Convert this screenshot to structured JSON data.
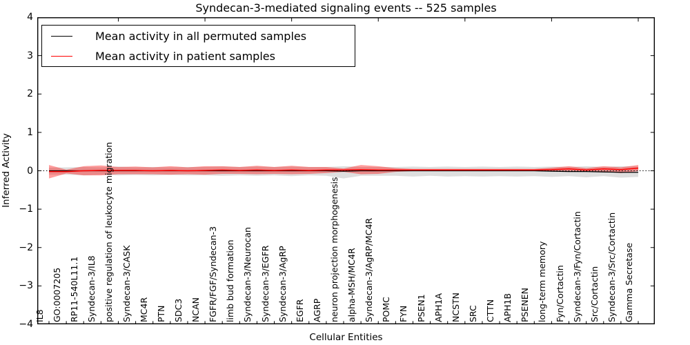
{
  "title": "Syndecan-3-mediated signaling events -- 525 samples",
  "legend": {
    "items": [
      {
        "label": "Mean activity in all permuted samples",
        "color": "#000000"
      },
      {
        "label": "Mean activity in patient samples",
        "color": "#ff0000"
      }
    ]
  },
  "axes": {
    "ylabel": "Inferred Activity",
    "xlabel": "Cellular Entities",
    "ytick_labels": [
      "4",
      "3",
      "2",
      "1",
      "0",
      "−1",
      "−2",
      "−3",
      "−4"
    ],
    "ytick_values": [
      4,
      3,
      2,
      1,
      0,
      -1,
      -2,
      -3,
      -4
    ]
  },
  "colors": {
    "permuted_line": "#000000",
    "patient_line": "#ff0000",
    "permuted_band": "#000000",
    "patient_band": "#ff0000",
    "spine": "#000000"
  },
  "chart_data": {
    "type": "line",
    "title": "Syndecan-3-mediated signaling events -- 525 samples",
    "xlabel": "Cellular Entities",
    "ylabel": "Inferred Activity",
    "ylim": [
      -4,
      4
    ],
    "grid": false,
    "legend_position": "upper left",
    "categories": [
      "IL8",
      "GO:0007205",
      "RP11-540L11.1",
      "Syndecan-3/IL8",
      "positive regulation of leukocyte migration",
      "Syndecan-3/CASK",
      "MC4R",
      "PTN",
      "SDC3",
      "NCAN",
      "FGFR/FGF/Syndecan-3",
      "limb bud formation",
      "Syndecan-3/Neurocan",
      "Syndecan-3/EGFR",
      "Syndecan-3/AgRP",
      "EGFR",
      "AGRP",
      "neuron projection morphogenesis",
      "alpha-MSH/MC4R",
      "Syndecan-3/AgRP/MC4R",
      "POMC",
      "FYN",
      "PSEN1",
      "APH1A",
      "NCSTN",
      "SRC",
      "CTTN",
      "APH1B",
      "PSENEN",
      "long-term memory",
      "Fyn/Cortactin",
      "Syndecan-3/Fyn/Cortactin",
      "Src/Cortactin",
      "Syndecan-3/Src/Cortactin",
      "Gamma Secretase"
    ],
    "series": [
      {
        "name": "Mean activity in all permuted samples",
        "color": "#000000",
        "values": [
          0,
          0,
          0,
          0,
          0,
          0,
          0,
          0,
          0,
          0,
          0,
          0,
          0,
          0,
          0,
          0,
          0,
          -0.01,
          0,
          0,
          0,
          0,
          0,
          0,
          0,
          0,
          0,
          0,
          0,
          -0.01,
          -0.02,
          -0.02,
          -0.03,
          -0.04,
          -0.04
        ]
      },
      {
        "name": "Mean activity in patient samples",
        "color": "#ff0000",
        "values": [
          -0.02,
          -0.02,
          0,
          0.01,
          0.01,
          0.01,
          0,
          0.01,
          0,
          0.01,
          0.02,
          0.01,
          0.02,
          0.01,
          0.02,
          0.01,
          0.02,
          0.02,
          0.03,
          0.02,
          0.02,
          0.02,
          0.02,
          0.02,
          0.02,
          0.02,
          0.02,
          0.02,
          0.02,
          0.03,
          0.05,
          0.02,
          0.05,
          0.03,
          0.07
        ]
      }
    ],
    "bands": [
      {
        "name": "permuted-std-band",
        "color": "#000000",
        "opacity": 0.13,
        "upper": [
          0.08,
          0.09,
          0.1,
          0.09,
          0.11,
          0.09,
          0.1,
          0.09,
          0.1,
          0.1,
          0.11,
          0.1,
          0.11,
          0.1,
          0.11,
          0.1,
          0.1,
          0.12,
          0.1,
          0.1,
          0.1,
          0.11,
          0.1,
          0.11,
          0.1,
          0.11,
          0.1,
          0.11,
          0.1,
          0.11,
          0.1,
          0.12,
          0.1,
          0.12,
          0.11
        ],
        "lower": [
          -0.1,
          -0.1,
          -0.12,
          -0.1,
          -0.12,
          -0.11,
          -0.12,
          -0.11,
          -0.12,
          -0.12,
          -0.13,
          -0.12,
          -0.13,
          -0.12,
          -0.14,
          -0.12,
          -0.13,
          -0.2,
          -0.13,
          -0.13,
          -0.13,
          -0.15,
          -0.13,
          -0.15,
          -0.14,
          -0.15,
          -0.14,
          -0.15,
          -0.14,
          -0.16,
          -0.14,
          -0.17,
          -0.14,
          -0.18,
          -0.16
        ]
      },
      {
        "name": "patient-std-band",
        "color": "#ff0000",
        "opacity": 0.38,
        "upper": [
          0.15,
          0.03,
          0.12,
          0.14,
          0.1,
          0.11,
          0.09,
          0.12,
          0.09,
          0.12,
          0.12,
          0.1,
          0.13,
          0.1,
          0.13,
          0.1,
          0.1,
          0.06,
          0.15,
          0.12,
          0.07,
          0.05,
          0.05,
          0.05,
          0.05,
          0.05,
          0.05,
          0.05,
          0.05,
          0.08,
          0.12,
          0.07,
          0.12,
          0.09,
          0.15
        ],
        "lower": [
          -0.2,
          -0.07,
          -0.12,
          -0.12,
          -0.09,
          -0.09,
          -0.09,
          -0.1,
          -0.09,
          -0.1,
          -0.08,
          -0.08,
          -0.09,
          -0.08,
          -0.09,
          -0.08,
          -0.06,
          -0.03,
          -0.09,
          -0.08,
          -0.03,
          -0.01,
          -0.01,
          -0.01,
          -0.01,
          -0.01,
          -0.01,
          -0.01,
          -0.01,
          -0.02,
          -0.02,
          -0.01,
          -0.02,
          -0.06,
          -0.01
        ]
      }
    ],
    "reference_line": {
      "value": 0,
      "style": "dotted",
      "color": "#000000"
    }
  }
}
